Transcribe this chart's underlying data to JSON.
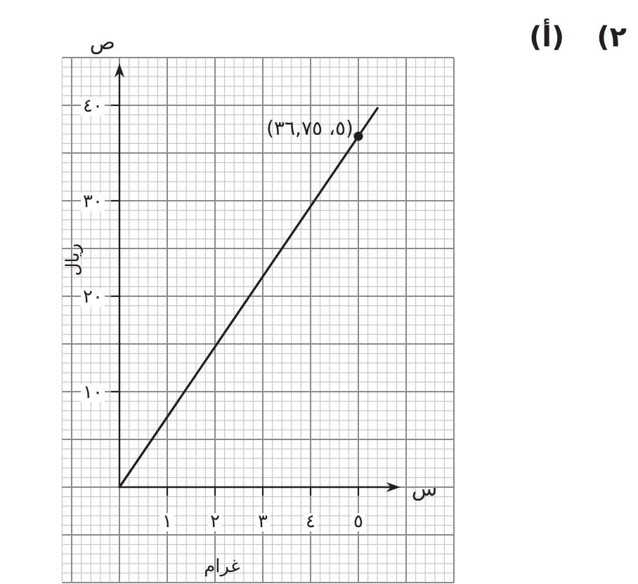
{
  "chart_data": {
    "type": "line",
    "title": "٢) (أ)",
    "xlabel": "غرام",
    "ylabel": "ريال",
    "series": [
      {
        "color": "#231f20",
        "x": [
          0,
          5.4
        ],
        "values": [
          0,
          39.7
        ]
      },
      {
        "type": "scatter",
        "color": "#231f20",
        "marker": "circle",
        "x": [
          5
        ],
        "values": [
          36.75
        ]
      }
    ],
    "xlim": [
      -1.2,
      7
    ],
    "ylim": [
      -10,
      45
    ],
    "xticks": [
      {
        "value": 1,
        "label": "١"
      },
      {
        "value": 2,
        "label": "٢"
      },
      {
        "value": 3,
        "label": "٣"
      },
      {
        "value": 4,
        "label": "٤"
      },
      {
        "value": 5,
        "label": "٥"
      }
    ],
    "yticks": [
      {
        "value": 10,
        "label": "١٠"
      },
      {
        "value": 20,
        "label": "٢٠"
      },
      {
        "value": 30,
        "label": "٣٠"
      },
      {
        "value": 40,
        "label": "٤٠"
      }
    ],
    "grid": true,
    "annotations": [
      {
        "text": "(٥، ٣٦,٧٥)",
        "x": 5,
        "y": 36.75
      },
      "س",
      "ص"
    ]
  }
}
